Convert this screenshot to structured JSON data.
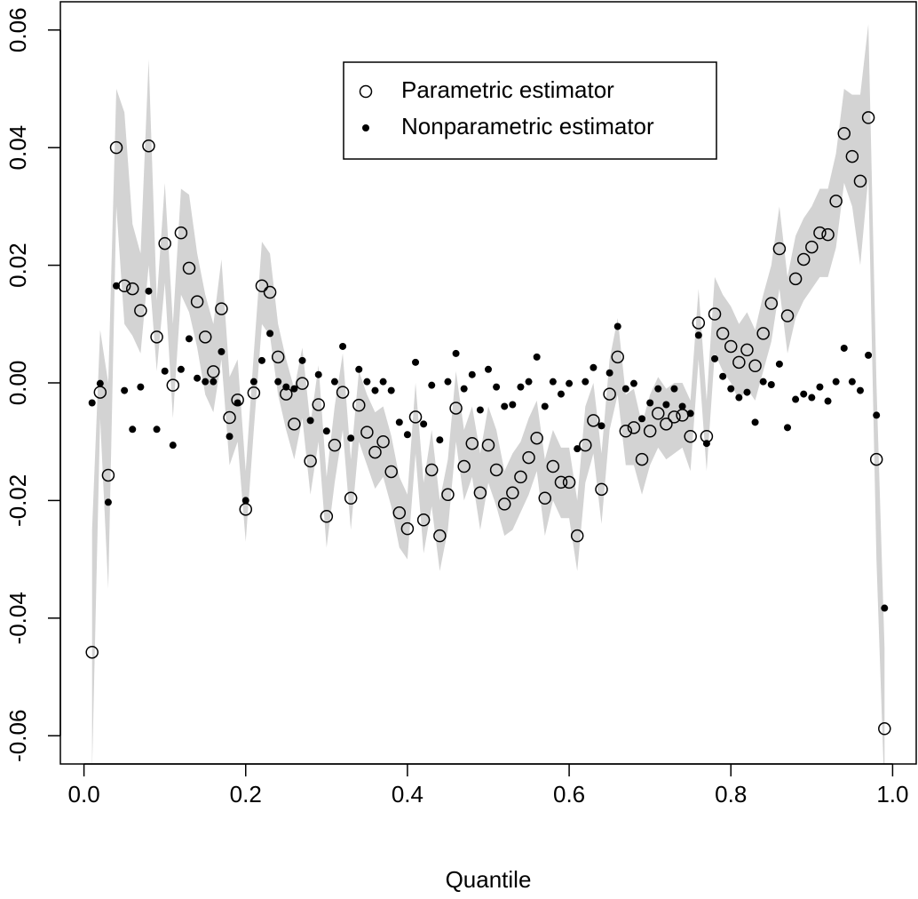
{
  "chart_data": {
    "type": "scatter",
    "xlabel": "Quantile",
    "x": [
      0.01,
      0.02,
      0.03,
      0.04,
      0.05,
      0.06,
      0.07,
      0.08,
      0.09,
      0.1,
      0.11,
      0.12,
      0.13,
      0.14,
      0.15,
      0.16,
      0.17,
      0.18,
      0.19,
      0.2,
      0.21,
      0.22,
      0.23,
      0.24,
      0.25,
      0.26,
      0.27,
      0.28,
      0.29,
      0.3,
      0.31,
      0.32,
      0.33,
      0.34,
      0.35,
      0.36,
      0.37,
      0.38,
      0.39,
      0.4,
      0.41,
      0.42,
      0.43,
      0.44,
      0.45,
      0.46,
      0.47,
      0.48,
      0.49,
      0.5,
      0.51,
      0.52,
      0.53,
      0.54,
      0.55,
      0.56,
      0.57,
      0.58,
      0.59,
      0.6,
      0.61,
      0.62,
      0.63,
      0.64,
      0.65,
      0.66,
      0.67,
      0.68,
      0.69,
      0.7,
      0.71,
      0.72,
      0.73,
      0.74,
      0.75,
      0.76,
      0.77,
      0.78,
      0.79,
      0.8,
      0.81,
      0.82,
      0.83,
      0.84,
      0.85,
      0.86,
      0.87,
      0.88,
      0.89,
      0.9,
      0.91,
      0.92,
      0.93,
      0.94,
      0.95,
      0.96,
      0.97,
      0.98,
      0.99
    ],
    "band": {
      "color": "#d3d3d3",
      "lower": [
        -0.066,
        -0.006,
        -0.035,
        0.03,
        0.01,
        0.008,
        0.005,
        0.02,
        0.002,
        0.017,
        -0.006,
        0.015,
        0.012,
        0.006,
        -0.002,
        -0.005,
        0.004,
        -0.014,
        -0.01,
        -0.027,
        -0.008,
        0.01,
        0.008,
        -0.002,
        -0.008,
        -0.013,
        -0.006,
        -0.019,
        -0.01,
        -0.028,
        -0.017,
        -0.008,
        -0.025,
        -0.01,
        -0.014,
        -0.018,
        -0.016,
        -0.021,
        -0.028,
        -0.03,
        -0.012,
        -0.029,
        -0.021,
        -0.032,
        -0.025,
        -0.01,
        -0.02,
        -0.016,
        -0.025,
        -0.017,
        -0.021,
        -0.026,
        -0.025,
        -0.022,
        -0.019,
        -0.015,
        -0.026,
        -0.02,
        -0.023,
        -0.023,
        -0.032,
        -0.017,
        -0.012,
        -0.024,
        -0.008,
        -0.002,
        -0.014,
        -0.014,
        -0.019,
        -0.014,
        -0.011,
        -0.013,
        -0.012,
        -0.011,
        -0.015,
        0.004,
        -0.015,
        0.005,
        0.002,
        0.0,
        -0.003,
        -0.001,
        -0.003,
        0.002,
        0.007,
        0.016,
        0.005,
        0.011,
        0.014,
        0.016,
        0.018,
        0.018,
        0.023,
        0.034,
        0.03,
        0.02,
        0.035,
        -0.03,
        -0.07
      ],
      "upper": [
        -0.025,
        0.009,
        0.0,
        0.05,
        0.046,
        0.027,
        0.022,
        0.055,
        0.014,
        0.034,
        0.01,
        0.033,
        0.032,
        0.022,
        0.015,
        0.01,
        0.021,
        0.001,
        0.004,
        -0.015,
        0.005,
        0.024,
        0.022,
        0.01,
        0.004,
        -0.001,
        0.006,
        -0.007,
        0.003,
        -0.016,
        -0.004,
        0.005,
        -0.013,
        0.002,
        -0.002,
        -0.005,
        -0.004,
        -0.009,
        -0.016,
        -0.019,
        0.0,
        -0.017,
        -0.008,
        -0.02,
        -0.013,
        0.002,
        -0.008,
        -0.004,
        -0.012,
        -0.004,
        -0.008,
        -0.015,
        -0.012,
        -0.01,
        -0.006,
        -0.003,
        -0.013,
        -0.008,
        -0.011,
        -0.011,
        -0.02,
        -0.004,
        0.0,
        -0.012,
        0.004,
        0.011,
        -0.002,
        -0.001,
        -0.007,
        -0.002,
        0.001,
        -0.001,
        0.0,
        0.0,
        -0.003,
        0.016,
        -0.003,
        0.018,
        0.015,
        0.013,
        0.01,
        0.012,
        0.009,
        0.015,
        0.02,
        0.03,
        0.018,
        0.025,
        0.028,
        0.03,
        0.033,
        0.033,
        0.039,
        0.05,
        0.049,
        0.049,
        0.061,
        0.0,
        -0.045
      ]
    },
    "series": [
      {
        "name": "Parametric estimator",
        "color": "#000000",
        "marker": "open",
        "values": [
          -0.0458,
          -0.0016,
          -0.0157,
          0.04,
          0.0165,
          0.016,
          0.0123,
          0.0403,
          0.0078,
          0.0237,
          -0.0004,
          0.0255,
          0.0195,
          0.0138,
          0.0078,
          0.0019,
          0.0126,
          -0.0059,
          -0.0029,
          -0.0215,
          -0.0017,
          0.0165,
          0.0154,
          0.0044,
          -0.0019,
          -0.007,
          -0.0001,
          -0.0133,
          -0.0037,
          -0.0227,
          -0.0106,
          -0.0016,
          -0.0196,
          -0.0038,
          -0.0084,
          -0.0118,
          -0.01,
          -0.0151,
          -0.0221,
          -0.0248,
          -0.0058,
          -0.0233,
          -0.0148,
          -0.026,
          -0.019,
          -0.0043,
          -0.0142,
          -0.0103,
          -0.0187,
          -0.0106,
          -0.0148,
          -0.0206,
          -0.0187,
          -0.016,
          -0.0127,
          -0.0094,
          -0.0196,
          -0.0142,
          -0.0169,
          -0.0169,
          -0.026,
          -0.0106,
          -0.0064,
          -0.0181,
          -0.0019,
          0.0044,
          -0.0082,
          -0.0076,
          -0.013,
          -0.0082,
          -0.0052,
          -0.007,
          -0.0058,
          -0.0055,
          -0.0091,
          0.0102,
          -0.0091,
          0.0117,
          0.0084,
          0.0062,
          0.0035,
          0.0056,
          0.0029,
          0.0084,
          0.0135,
          0.0228,
          0.0114,
          0.0177,
          0.021,
          0.0231,
          0.0255,
          0.0252,
          0.0309,
          0.0424,
          0.0385,
          0.0343,
          0.0451,
          -0.013,
          -0.0588
        ]
      },
      {
        "name": "Nonparametric estimator",
        "color": "#000000",
        "marker": "filled",
        "values": [
          -0.0034,
          -0.0001,
          -0.0203,
          0.0165,
          -0.0013,
          -0.0079,
          -0.0007,
          0.0156,
          -0.0079,
          0.002,
          -0.0106,
          0.0023,
          0.0075,
          0.0008,
          0.0002,
          0.0002,
          0.0053,
          -0.0091,
          -0.0034,
          -0.02,
          0.0002,
          0.0038,
          0.0084,
          0.0002,
          -0.0007,
          -0.001,
          0.0038,
          -0.0064,
          0.0014,
          -0.0082,
          0.0002,
          0.0062,
          -0.0094,
          0.0023,
          0.0002,
          -0.0013,
          0.0002,
          -0.0013,
          -0.0067,
          -0.0088,
          0.0035,
          -0.007,
          -0.0004,
          -0.0097,
          0.0002,
          0.005,
          -0.001,
          0.0014,
          -0.0046,
          0.0023,
          -0.0007,
          -0.004,
          -0.0037,
          -0.0007,
          0.0002,
          0.0044,
          -0.004,
          0.0002,
          -0.0019,
          -0.0001,
          -0.0112,
          0.0002,
          0.0026,
          -0.0073,
          0.0017,
          0.0096,
          -0.001,
          -0.0001,
          -0.0061,
          -0.0034,
          -0.001,
          -0.0037,
          -0.001,
          -0.004,
          -0.0052,
          0.0081,
          -0.0103,
          0.0041,
          0.0011,
          -0.001,
          -0.0025,
          -0.0016,
          -0.0067,
          0.0002,
          -0.0003,
          0.0032,
          -0.0076,
          -0.0028,
          -0.0019,
          -0.0025,
          -0.0007,
          -0.0031,
          0.0002,
          0.0059,
          0.0002,
          -0.0013,
          0.0047,
          -0.0055,
          -0.0383
        ]
      }
    ],
    "xlim": [
      -0.0292,
      1.0292
    ],
    "ylim": [
      -0.0648,
      0.0648
    ],
    "xticks": [
      {
        "value": 0,
        "label": "0.0"
      },
      0.2,
      0.4,
      0.6,
      0.8,
      {
        "value": 1,
        "label": "1.0"
      }
    ],
    "yticks": [
      -0.06,
      -0.04,
      -0.02,
      {
        "value": 0,
        "label": "0.00"
      },
      0.02,
      0.04,
      0.06
    ],
    "legend": "top"
  }
}
